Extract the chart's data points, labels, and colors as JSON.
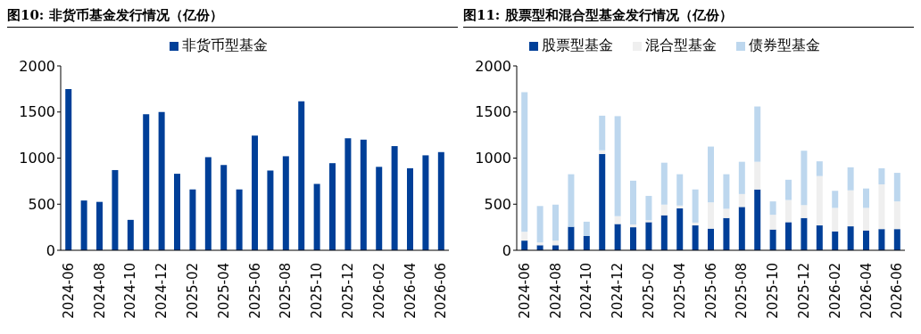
{
  "chart_data": [
    {
      "type": "bar",
      "title": "图10:  非货币基金发行情况（亿份）",
      "categories": [
        "2024-06",
        null,
        "2024-08",
        null,
        "2024-10",
        null,
        "2024-12",
        null,
        "2025-02",
        null,
        "2025-04",
        null,
        "2025-06",
        null,
        "2025-08",
        null,
        "2025-10",
        null,
        "2025-12",
        null,
        "2026-02",
        null,
        "2026-04",
        null,
        "2026-06"
      ],
      "series": [
        {
          "name": "非货币型基金",
          "color": "#003f98",
          "values": [
            1750,
            540,
            525,
            870,
            330,
            1475,
            1500,
            830,
            660,
            1010,
            925,
            660,
            1245,
            865,
            1020,
            1615,
            720,
            945,
            1215,
            1200,
            905,
            1130,
            890,
            1030,
            1065
          ]
        }
      ],
      "ylim": [
        0,
        2000
      ],
      "yticks": [
        0,
        500,
        1000,
        1500,
        2000
      ],
      "grid": false,
      "legend": "top"
    },
    {
      "type": "bar",
      "title": "图11:  股票型和混合型基金发行情况（亿份）",
      "stacked": true,
      "categories": [
        "2024-06",
        null,
        "2024-08",
        null,
        "2024-10",
        null,
        "2024-12",
        null,
        "2025-02",
        null,
        "2025-04",
        null,
        "2025-06",
        null,
        "2025-08",
        null,
        "2025-10",
        null,
        "2025-12",
        null,
        "2026-02",
        null,
        "2026-04",
        null,
        "2026-06"
      ],
      "series": [
        {
          "name": "股票型基金",
          "color": "#003f98",
          "values": [
            105,
            55,
            55,
            255,
            155,
            1045,
            285,
            250,
            305,
            380,
            455,
            270,
            235,
            350,
            470,
            660,
            225,
            305,
            350,
            270,
            205,
            260,
            215,
            230,
            230
          ]
        },
        {
          "name": "混合型基金",
          "color": "#efefef",
          "values": [
            95,
            30,
            50,
            null,
            0,
            40,
            85,
            30,
            20,
            115,
            30,
            30,
            285,
            100,
            140,
            300,
            160,
            240,
            140,
            535,
            255,
            390,
            245,
            485,
            300
          ]
        },
        {
          "name": "债券型基金",
          "color": "#bdd7ee",
          "values": [
            1515,
            395,
            390,
            570,
            155,
            375,
            1085,
            475,
            265,
            455,
            340,
            360,
            605,
            375,
            350,
            600,
            145,
            220,
            590,
            160,
            185,
            250,
            210,
            175,
            310
          ]
        }
      ],
      "ylim": [
        0,
        2000
      ],
      "yticks": [
        0,
        500,
        1000,
        1500,
        2000
      ],
      "grid": false,
      "legend": "top"
    }
  ]
}
